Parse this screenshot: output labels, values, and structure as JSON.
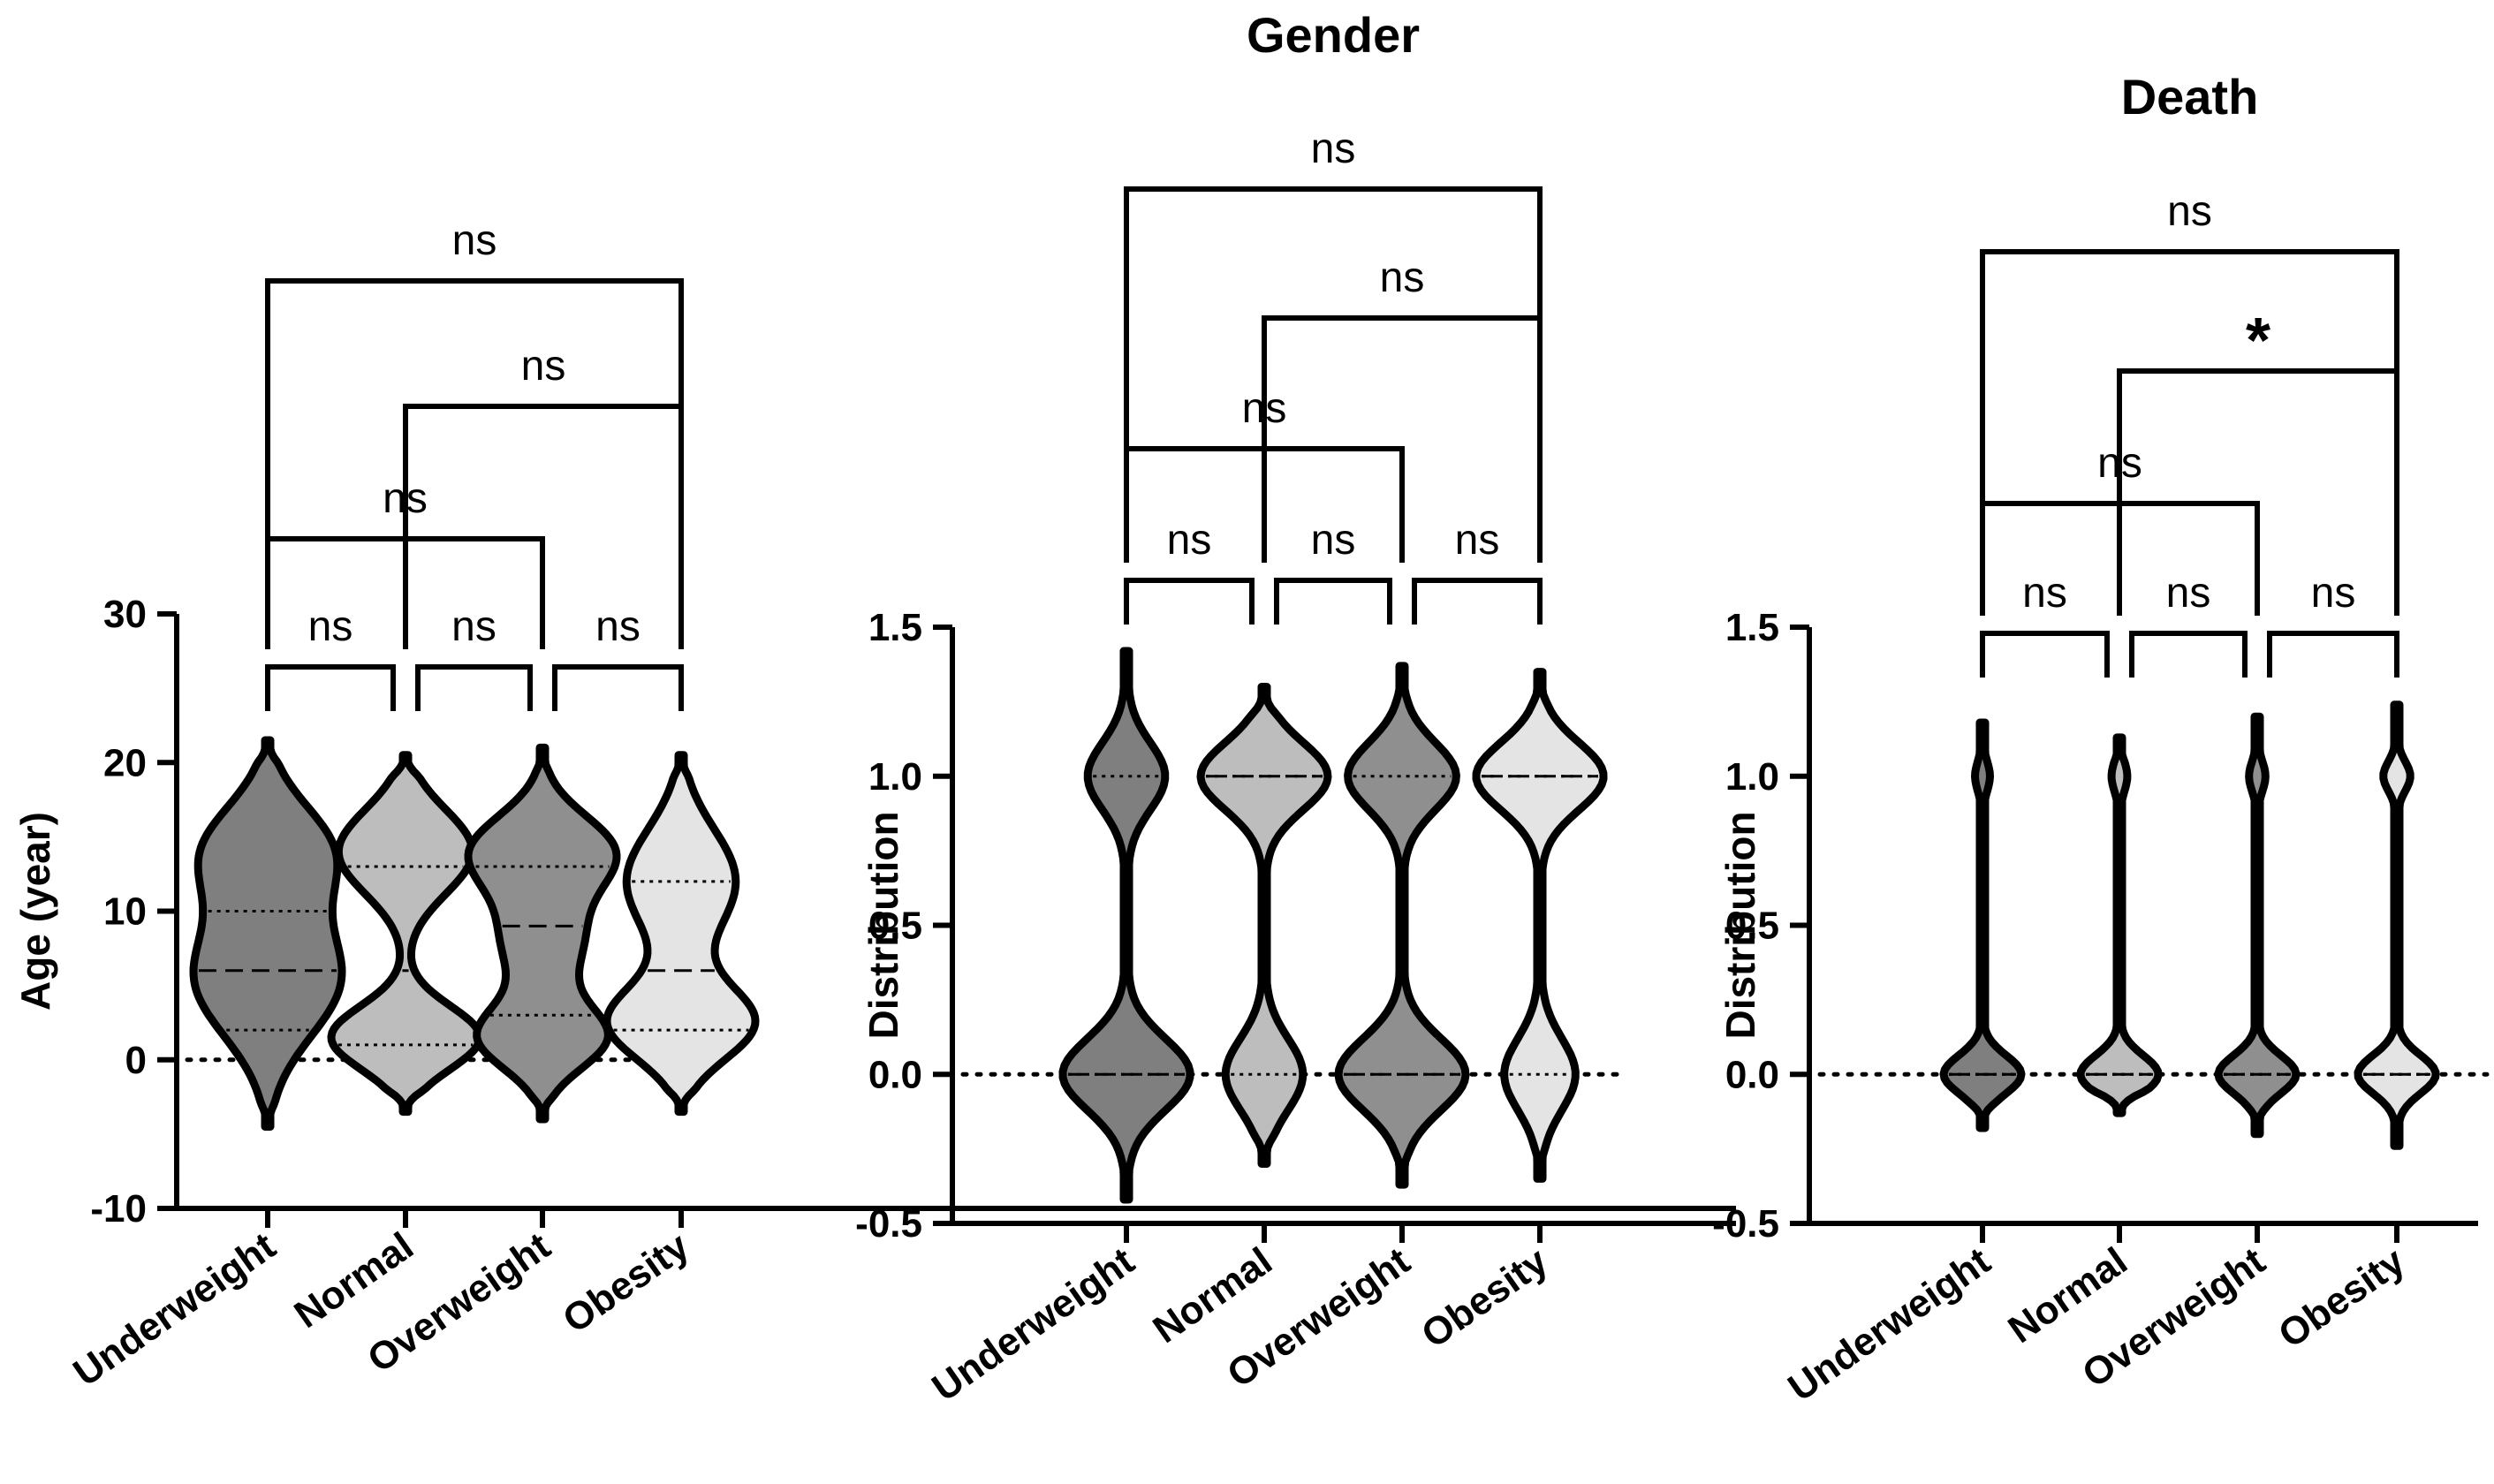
{
  "colors": {
    "underweight": "#7f7f7f",
    "normal": "#bdbdbd",
    "overweight": "#8f8f8f",
    "obesity": "#e4e4e4",
    "axis": "#000000"
  },
  "chart_data": [
    {
      "type": "violin",
      "title": "",
      "ylabel": "Age (year)",
      "ylim": [
        -10,
        30
      ],
      "yticks": [
        {
          "value": -10,
          "label": "-10"
        },
        {
          "value": 0,
          "label": "0"
        },
        {
          "value": 10,
          "label": "10"
        },
        {
          "value": 20,
          "label": "20"
        },
        {
          "value": 30,
          "label": "30"
        }
      ],
      "reference_line": 0,
      "categories": [
        "Underweight",
        "Normal",
        "Overweight",
        "Obesity"
      ],
      "violins": [
        {
          "name": "Underweight",
          "min": -4.5,
          "max": 21.5,
          "median": 6,
          "q1": 2,
          "q3": 10
        },
        {
          "name": "Normal",
          "min": -3.5,
          "max": 20.5,
          "median": 6,
          "q1": 1,
          "q3": 13
        },
        {
          "name": "Overweight",
          "min": -4,
          "max": 21,
          "median": 9,
          "q1": 3,
          "q3": 13
        },
        {
          "name": "Obesity",
          "min": -3.5,
          "max": 20.5,
          "median": 6,
          "q1": 2,
          "q3": 12
        }
      ],
      "comparisons": [
        {
          "from": 0,
          "to": 1,
          "label": "ns"
        },
        {
          "from": 1,
          "to": 2,
          "label": "ns"
        },
        {
          "from": 2,
          "to": 3,
          "label": "ns"
        },
        {
          "from": 0,
          "to": 2,
          "label": "ns"
        },
        {
          "from": 1,
          "to": 3,
          "label": "ns"
        },
        {
          "from": 0,
          "to": 3,
          "label": "ns"
        }
      ]
    },
    {
      "type": "violin",
      "title": "Gender",
      "ylabel": "Distribution",
      "ylim": [
        -0.5,
        1.5
      ],
      "yticks": [
        {
          "value": -0.5,
          "label": "-0.5"
        },
        {
          "value": 0,
          "label": "0.0"
        },
        {
          "value": 0.5,
          "label": "0.5"
        },
        {
          "value": 1,
          "label": "1.0"
        },
        {
          "value": 1.5,
          "label": "1.5"
        }
      ],
      "reference_line": 0,
      "categories": [
        "Underweight",
        "Normal",
        "Overweight",
        "Obesity"
      ],
      "violins": [
        {
          "name": "Underweight",
          "min": -0.42,
          "max": 1.42,
          "median": 0,
          "q1": 0,
          "q3": 1
        },
        {
          "name": "Normal",
          "min": -0.3,
          "max": 1.3,
          "median": 1,
          "q1": 0,
          "q3": 1
        },
        {
          "name": "Overweight",
          "min": -0.37,
          "max": 1.37,
          "median": 0,
          "q1": 0,
          "q3": 1
        },
        {
          "name": "Obesity",
          "min": -0.35,
          "max": 1.35,
          "median": 1,
          "q1": 0,
          "q3": 1
        }
      ],
      "comparisons": [
        {
          "from": 0,
          "to": 1,
          "label": "ns"
        },
        {
          "from": 1,
          "to": 2,
          "label": "ns"
        },
        {
          "from": 2,
          "to": 3,
          "label": "ns"
        },
        {
          "from": 0,
          "to": 2,
          "label": "ns"
        },
        {
          "from": 1,
          "to": 3,
          "label": "ns"
        },
        {
          "from": 0,
          "to": 3,
          "label": "ns"
        }
      ]
    },
    {
      "type": "violin",
      "title": "Death",
      "ylabel": "Distribution",
      "ylim": [
        -0.5,
        1.5
      ],
      "yticks": [
        {
          "value": -0.5,
          "label": "-0.5"
        },
        {
          "value": 0,
          "label": "0.0"
        },
        {
          "value": 0.5,
          "label": "0.5"
        },
        {
          "value": 1,
          "label": "1.0"
        },
        {
          "value": 1.5,
          "label": "1.5"
        }
      ],
      "reference_line": 0,
      "categories": [
        "Underweight",
        "Normal",
        "Overweight",
        "Obesity"
      ],
      "violins": [
        {
          "name": "Underweight",
          "min": -0.18,
          "max": 1.18,
          "median": 0,
          "q1": 0,
          "q3": 0
        },
        {
          "name": "Normal",
          "min": -0.13,
          "max": 1.13,
          "median": 0,
          "q1": 0,
          "q3": 0
        },
        {
          "name": "Overweight",
          "min": -0.2,
          "max": 1.2,
          "median": 0,
          "q1": 0,
          "q3": 0
        },
        {
          "name": "Obesity",
          "min": -0.24,
          "max": 1.24,
          "median": 0,
          "q1": 0,
          "q3": 0
        }
      ],
      "comparisons": [
        {
          "from": 0,
          "to": 1,
          "label": "ns"
        },
        {
          "from": 1,
          "to": 2,
          "label": "ns"
        },
        {
          "from": 2,
          "to": 3,
          "label": "ns"
        },
        {
          "from": 0,
          "to": 2,
          "label": "ns"
        },
        {
          "from": 1,
          "to": 3,
          "label": "*"
        },
        {
          "from": 0,
          "to": 3,
          "label": "ns"
        }
      ]
    }
  ]
}
